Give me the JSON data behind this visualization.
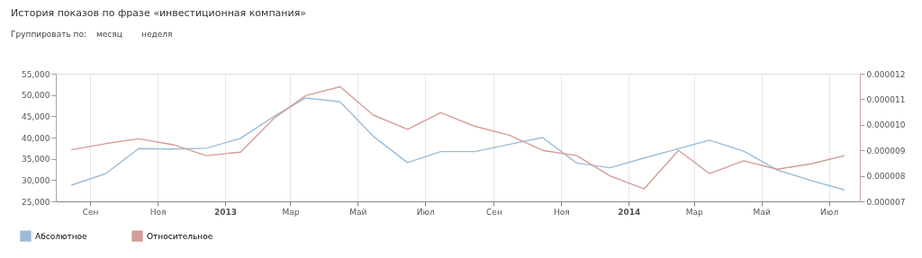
{
  "chart_data": {
    "type": "line",
    "title": "История показов по фразе «инвестиционная компания»",
    "annotations": [
      "Группировать по:",
      "месяц",
      "неделя"
    ],
    "x": [
      "2012-08-15",
      "2012-09-15",
      "2012-10-15",
      "2012-11-15",
      "2012-12-15",
      "2013-01-15",
      "2013-02-15",
      "2013-03-15",
      "2013-04-15",
      "2013-05-15",
      "2013-06-15",
      "2013-07-15",
      "2013-08-15",
      "2013-09-15",
      "2013-10-15",
      "2013-11-15",
      "2013-12-15",
      "2014-01-15",
      "2014-02-15",
      "2014-03-15",
      "2014-04-15",
      "2014-05-15",
      "2014-06-15",
      "2014-07-15"
    ],
    "series": [
      {
        "name": "Абсолютное",
        "color": "#9bbcd8",
        "values": [
          28800,
          31500,
          37400,
          37300,
          37500,
          39800,
          45100,
          49300,
          48400,
          40300,
          34100,
          36700,
          36700,
          38400,
          40000,
          34000,
          32900,
          35200,
          37400,
          39400,
          36800,
          32400,
          29900,
          27700
        ]
      },
      {
        "name": "Относительное",
        "color": "#d39d97",
        "axis": "y2",
        "values": [
          9.02e-06,
          9.26e-06,
          9.45e-06,
          9.22e-06,
          8.79e-06,
          8.93e-06,
          1.028e-05,
          1.114e-05,
          1.149e-05,
          1.038e-05,
          9.82e-06,
          1.047e-05,
          9.94e-06,
          9.59e-06,
          9e-06,
          8.79e-06,
          8e-06,
          7.49e-06,
          9e-06,
          8.09e-06,
          8.59e-06,
          8.26e-06,
          8.47e-06,
          8.79e-06
        ]
      }
    ],
    "xlim": [
      "2012-08-01",
      "2014-07-29"
    ],
    "xticks": [
      {
        "value": "2012-09-01",
        "label": "Сен"
      },
      {
        "value": "2012-11-01",
        "label": "Ноя"
      },
      {
        "value": "2013-01-01",
        "label": "2013"
      },
      {
        "value": "2013-03-01",
        "label": "Мар"
      },
      {
        "value": "2013-05-01",
        "label": "Май"
      },
      {
        "value": "2013-07-01",
        "label": "Июл"
      },
      {
        "value": "2013-09-01",
        "label": "Сен"
      },
      {
        "value": "2013-11-01",
        "label": "Ноя"
      },
      {
        "value": "2014-01-01",
        "label": "2014"
      },
      {
        "value": "2014-03-01",
        "label": "Мар"
      },
      {
        "value": "2014-05-01",
        "label": "Май"
      },
      {
        "value": "2014-07-01",
        "label": "Июл"
      }
    ],
    "ylim": [
      25000,
      55000
    ],
    "yticks": [
      {
        "value": 25000,
        "label": "25,000"
      },
      {
        "value": 30000,
        "label": "30,000"
      },
      {
        "value": 35000,
        "label": "35,000"
      },
      {
        "value": 40000,
        "label": "40,000"
      },
      {
        "value": 45000,
        "label": "45,000"
      },
      {
        "value": 50000,
        "label": "50,000"
      },
      {
        "value": 55000,
        "label": "55,000"
      }
    ],
    "y2lim": [
      7e-06,
      1.2e-05
    ],
    "y2ticks": [
      {
        "value": 7e-06,
        "label": "0.000007"
      },
      {
        "value": 8e-06,
        "label": "0.000008"
      },
      {
        "value": 9e-06,
        "label": "0.000009"
      },
      {
        "value": 1e-05,
        "label": "0.000010"
      },
      {
        "value": 1.1e-05,
        "label": "0.000011"
      },
      {
        "value": 1.2e-05,
        "label": "0.000012"
      }
    ],
    "grid": "x",
    "legend": "bottom left",
    "marker": "none",
    "line_style": "solid"
  }
}
